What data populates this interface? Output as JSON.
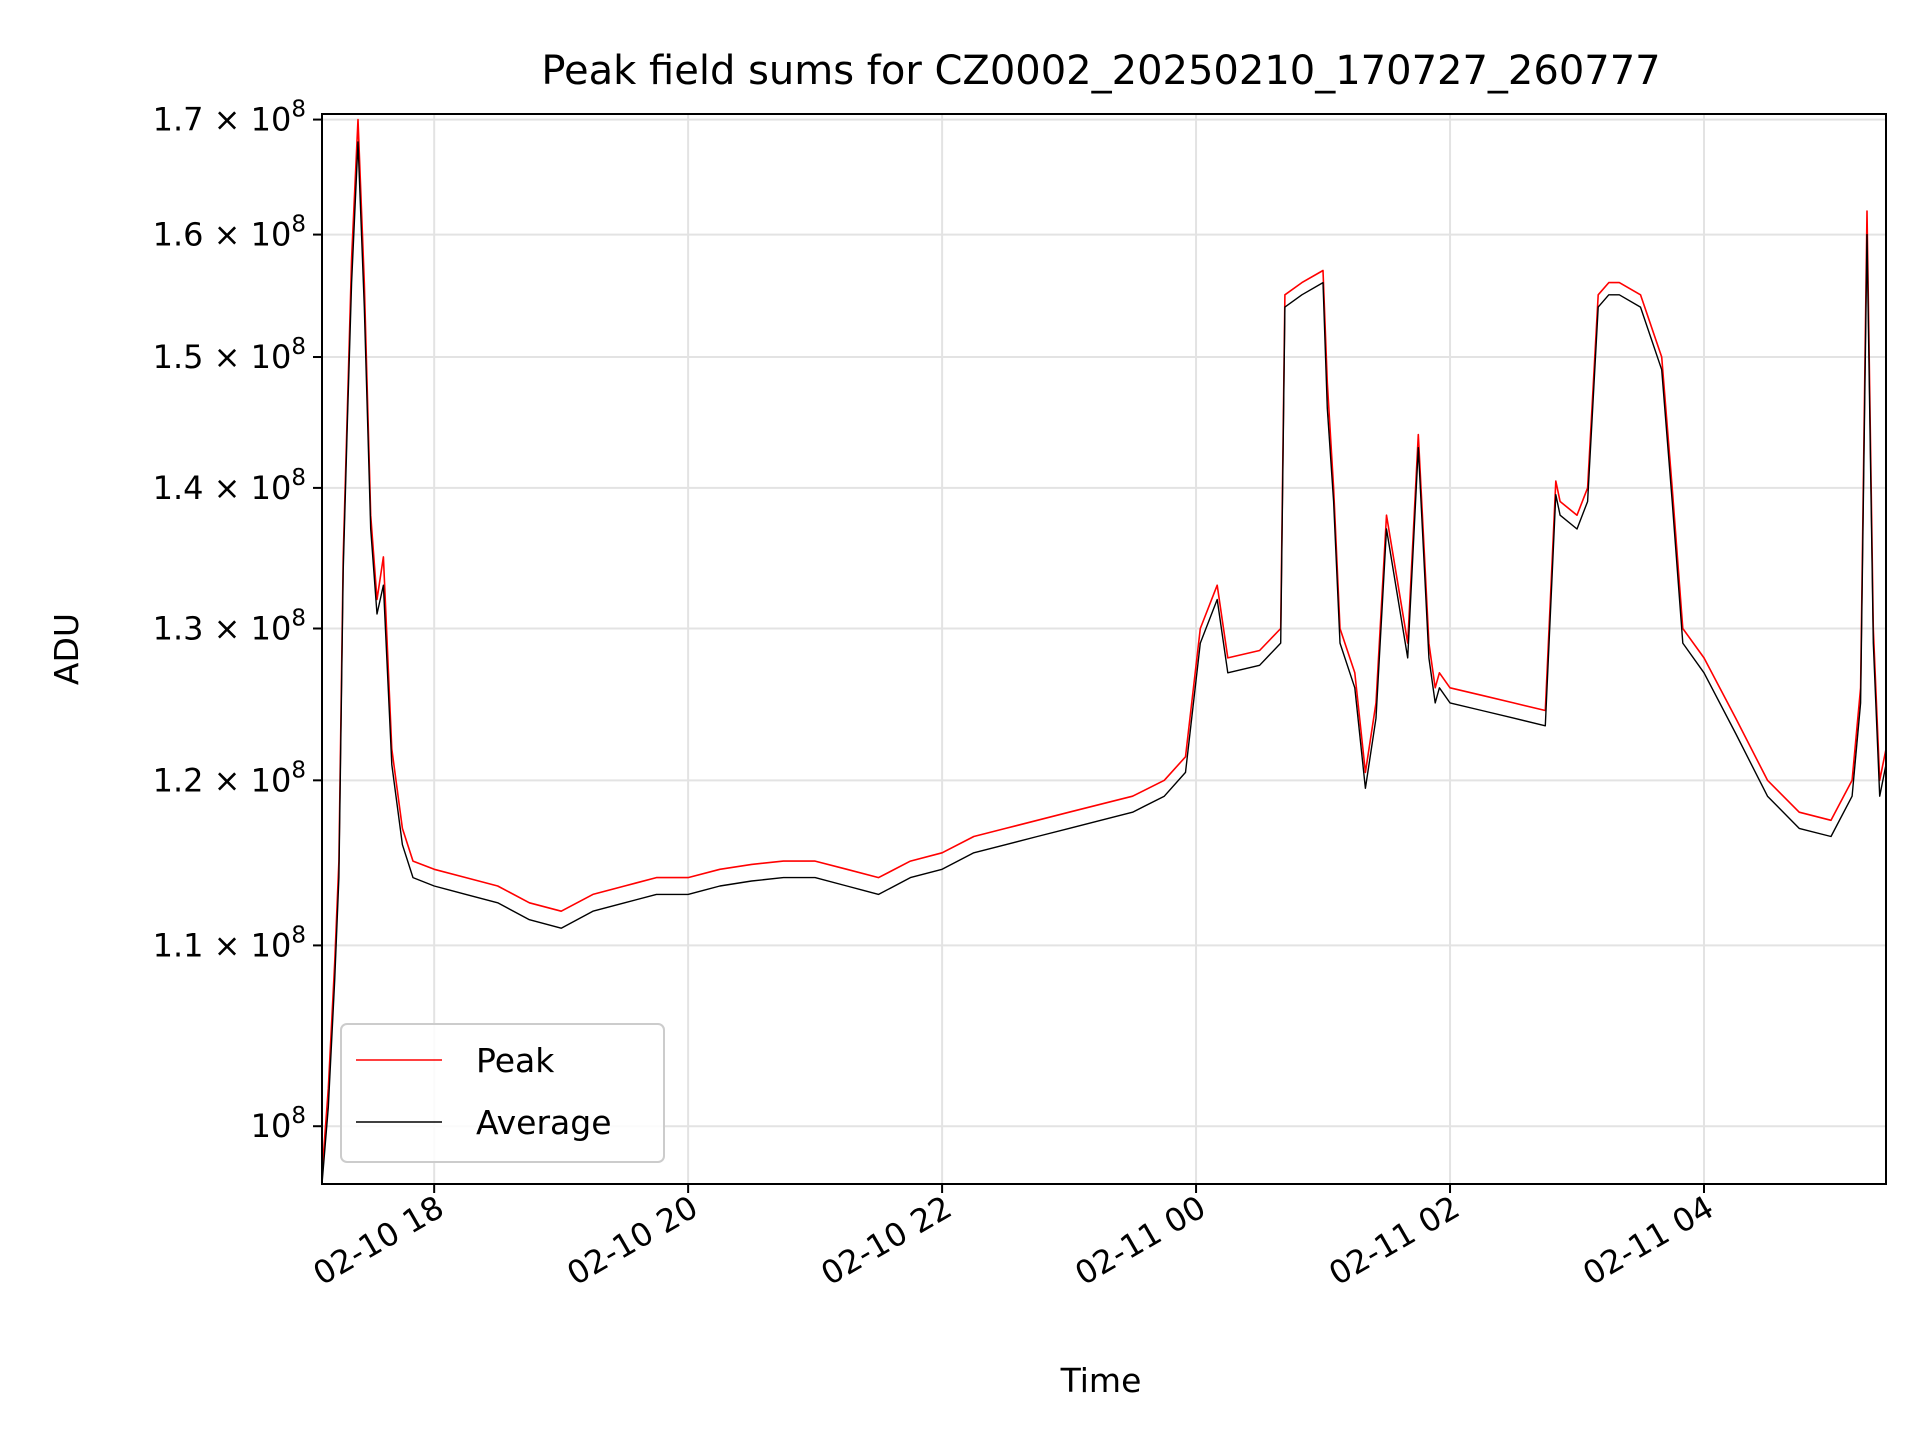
{
  "chart_data": {
    "type": "line",
    "title": "Peak field sums for CZ0002_20250210_170727_260777",
    "xlabel": "Time",
    "ylabel": "ADU",
    "x_scale": "time",
    "y_scale": "log",
    "xlim": [
      "2025-02-10 17:07",
      "2025-02-11 05:26"
    ],
    "ylim": [
      97000000,
      170500000
    ],
    "x_ticks": [
      {
        "value": "2025-02-10 18:00",
        "label": "02-10 18"
      },
      {
        "value": "2025-02-10 20:00",
        "label": "02-10 20"
      },
      {
        "value": "2025-02-10 22:00",
        "label": "02-10 22"
      },
      {
        "value": "2025-02-11 00:00",
        "label": "02-11 00"
      },
      {
        "value": "2025-02-11 02:00",
        "label": "02-11 02"
      },
      {
        "value": "2025-02-11 04:00",
        "label": "02-11 04"
      }
    ],
    "y_ticks": [
      {
        "value": 100000000,
        "mantissa": "",
        "exp": "8"
      },
      {
        "value": 110000000,
        "mantissa": "1.1",
        "exp": "8"
      },
      {
        "value": 120000000,
        "mantissa": "1.2",
        "exp": "8"
      },
      {
        "value": 130000000,
        "mantissa": "1.3",
        "exp": "8"
      },
      {
        "value": 140000000,
        "mantissa": "1.4",
        "exp": "8"
      },
      {
        "value": 150000000,
        "mantissa": "1.5",
        "exp": "8"
      },
      {
        "value": 160000000,
        "mantissa": "1.6",
        "exp": "8"
      },
      {
        "value": 170000000,
        "mantissa": "1.7",
        "exp": "8"
      }
    ],
    "grid": true,
    "legend_position": "lower-left",
    "series": [
      {
        "name": "Peak",
        "color": "#ff0000",
        "x": [
          "2025-02-10 17:07",
          "2025-02-10 17:10",
          "2025-02-10 17:13",
          "2025-02-10 17:15",
          "2025-02-10 17:17",
          "2025-02-10 17:19",
          "2025-02-10 17:21",
          "2025-02-10 17:24",
          "2025-02-10 17:27",
          "2025-02-10 17:30",
          "2025-02-10 17:33",
          "2025-02-10 17:36",
          "2025-02-10 17:40",
          "2025-02-10 17:45",
          "2025-02-10 17:50",
          "2025-02-10 18:00",
          "2025-02-10 18:15",
          "2025-02-10 18:30",
          "2025-02-10 18:45",
          "2025-02-10 19:00",
          "2025-02-10 19:15",
          "2025-02-10 19:30",
          "2025-02-10 19:45",
          "2025-02-10 20:00",
          "2025-02-10 20:15",
          "2025-02-10 20:30",
          "2025-02-10 20:45",
          "2025-02-10 21:00",
          "2025-02-10 21:15",
          "2025-02-10 21:30",
          "2025-02-10 21:45",
          "2025-02-10 22:00",
          "2025-02-10 22:15",
          "2025-02-10 22:30",
          "2025-02-10 22:45",
          "2025-02-10 23:00",
          "2025-02-10 23:15",
          "2025-02-10 23:30",
          "2025-02-10 23:45",
          "2025-02-10 23:55",
          "2025-02-11 00:02",
          "2025-02-11 00:10",
          "2025-02-11 00:15",
          "2025-02-11 00:30",
          "2025-02-11 00:40",
          "2025-02-11 00:42",
          "2025-02-11 00:50",
          "2025-02-11 01:00",
          "2025-02-11 01:02",
          "2025-02-11 01:05",
          "2025-02-11 01:08",
          "2025-02-11 01:15",
          "2025-02-11 01:20",
          "2025-02-11 01:25",
          "2025-02-11 01:30",
          "2025-02-11 01:40",
          "2025-02-11 01:45",
          "2025-02-11 01:50",
          "2025-02-11 01:53",
          "2025-02-11 01:55",
          "2025-02-11 02:00",
          "2025-02-11 02:15",
          "2025-02-11 02:30",
          "2025-02-11 02:45",
          "2025-02-11 02:50",
          "2025-02-11 02:52",
          "2025-02-11 03:00",
          "2025-02-11 03:05",
          "2025-02-11 03:10",
          "2025-02-11 03:15",
          "2025-02-11 03:20",
          "2025-02-11 03:30",
          "2025-02-11 03:40",
          "2025-02-11 03:45",
          "2025-02-11 03:50",
          "2025-02-11 04:00",
          "2025-02-11 04:15",
          "2025-02-11 04:30",
          "2025-02-11 04:45",
          "2025-02-11 05:00",
          "2025-02-11 05:10",
          "2025-02-11 05:14",
          "2025-02-11 05:17",
          "2025-02-11 05:20",
          "2025-02-11 05:23",
          "2025-02-11 05:26"
        ],
        "y": [
          97500000,
          102000000,
          109000000,
          115000000,
          135000000,
          146000000,
          158000000,
          170000000,
          156000000,
          138000000,
          132000000,
          135000000,
          122000000,
          117000000,
          115000000,
          114500000,
          114000000,
          113500000,
          112500000,
          112000000,
          113000000,
          113500000,
          114000000,
          114000000,
          114500000,
          114800000,
          115000000,
          115000000,
          114500000,
          114000000,
          115000000,
          115500000,
          116500000,
          117000000,
          117500000,
          118000000,
          118500000,
          119000000,
          120000000,
          121500000,
          130000000,
          133000000,
          128000000,
          128500000,
          130000000,
          155000000,
          156000000,
          157000000,
          148000000,
          140000000,
          130000000,
          127000000,
          120500000,
          125000000,
          138000000,
          129000000,
          144000000,
          129000000,
          126000000,
          127000000,
          126000000,
          125500000,
          125000000,
          124500000,
          140500000,
          139000000,
          138000000,
          140000000,
          155000000,
          156000000,
          156000000,
          155000000,
          150000000,
          140000000,
          130000000,
          128000000,
          124000000,
          120000000,
          118000000,
          117500000,
          120000000,
          126000000,
          162000000,
          130000000,
          120000000,
          122000000
        ]
      },
      {
        "name": "Average",
        "color": "#000000",
        "x": [
          "2025-02-10 17:07",
          "2025-02-10 17:10",
          "2025-02-10 17:13",
          "2025-02-10 17:15",
          "2025-02-10 17:17",
          "2025-02-10 17:19",
          "2025-02-10 17:21",
          "2025-02-10 17:24",
          "2025-02-10 17:27",
          "2025-02-10 17:30",
          "2025-02-10 17:33",
          "2025-02-10 17:36",
          "2025-02-10 17:40",
          "2025-02-10 17:45",
          "2025-02-10 17:50",
          "2025-02-10 18:00",
          "2025-02-10 18:15",
          "2025-02-10 18:30",
          "2025-02-10 18:45",
          "2025-02-10 19:00",
          "2025-02-10 19:15",
          "2025-02-10 19:30",
          "2025-02-10 19:45",
          "2025-02-10 20:00",
          "2025-02-10 20:15",
          "2025-02-10 20:30",
          "2025-02-10 20:45",
          "2025-02-10 21:00",
          "2025-02-10 21:15",
          "2025-02-10 21:30",
          "2025-02-10 21:45",
          "2025-02-10 22:00",
          "2025-02-10 22:15",
          "2025-02-10 22:30",
          "2025-02-10 22:45",
          "2025-02-10 23:00",
          "2025-02-10 23:15",
          "2025-02-10 23:30",
          "2025-02-10 23:45",
          "2025-02-10 23:55",
          "2025-02-11 00:02",
          "2025-02-11 00:10",
          "2025-02-11 00:15",
          "2025-02-11 00:30",
          "2025-02-11 00:40",
          "2025-02-11 00:42",
          "2025-02-11 00:50",
          "2025-02-11 01:00",
          "2025-02-11 01:02",
          "2025-02-11 01:05",
          "2025-02-11 01:08",
          "2025-02-11 01:15",
          "2025-02-11 01:20",
          "2025-02-11 01:25",
          "2025-02-11 01:30",
          "2025-02-11 01:40",
          "2025-02-11 01:45",
          "2025-02-11 01:50",
          "2025-02-11 01:53",
          "2025-02-11 01:55",
          "2025-02-11 02:00",
          "2025-02-11 02:15",
          "2025-02-11 02:30",
          "2025-02-11 02:45",
          "2025-02-11 02:50",
          "2025-02-11 02:52",
          "2025-02-11 03:00",
          "2025-02-11 03:05",
          "2025-02-11 03:10",
          "2025-02-11 03:15",
          "2025-02-11 03:20",
          "2025-02-11 03:30",
          "2025-02-11 03:40",
          "2025-02-11 03:45",
          "2025-02-11 03:50",
          "2025-02-11 04:00",
          "2025-02-11 04:15",
          "2025-02-11 04:30",
          "2025-02-11 04:45",
          "2025-02-11 05:00",
          "2025-02-11 05:10",
          "2025-02-11 05:14",
          "2025-02-11 05:17",
          "2025-02-11 05:20",
          "2025-02-11 05:23",
          "2025-02-11 05:26"
        ],
        "y": [
          97000000,
          101000000,
          108000000,
          114000000,
          134000000,
          145000000,
          156000000,
          168000000,
          154000000,
          137000000,
          131000000,
          133000000,
          121000000,
          116000000,
          114000000,
          113500000,
          113000000,
          112500000,
          111500000,
          111000000,
          112000000,
          112500000,
          113000000,
          113000000,
          113500000,
          113800000,
          114000000,
          114000000,
          113500000,
          113000000,
          114000000,
          114500000,
          115500000,
          116000000,
          116500000,
          117000000,
          117500000,
          118000000,
          119000000,
          120500000,
          129000000,
          132000000,
          127000000,
          127500000,
          129000000,
          154000000,
          155000000,
          156000000,
          146000000,
          139000000,
          129000000,
          126000000,
          119500000,
          124000000,
          137000000,
          128000000,
          143000000,
          128000000,
          125000000,
          126000000,
          125000000,
          124500000,
          124000000,
          123500000,
          139500000,
          138000000,
          137000000,
          139000000,
          154000000,
          155000000,
          155000000,
          154000000,
          149000000,
          139000000,
          129000000,
          127000000,
          123000000,
          119000000,
          117000000,
          116500000,
          119000000,
          125000000,
          160000000,
          129000000,
          119000000,
          121000000
        ]
      }
    ]
  }
}
